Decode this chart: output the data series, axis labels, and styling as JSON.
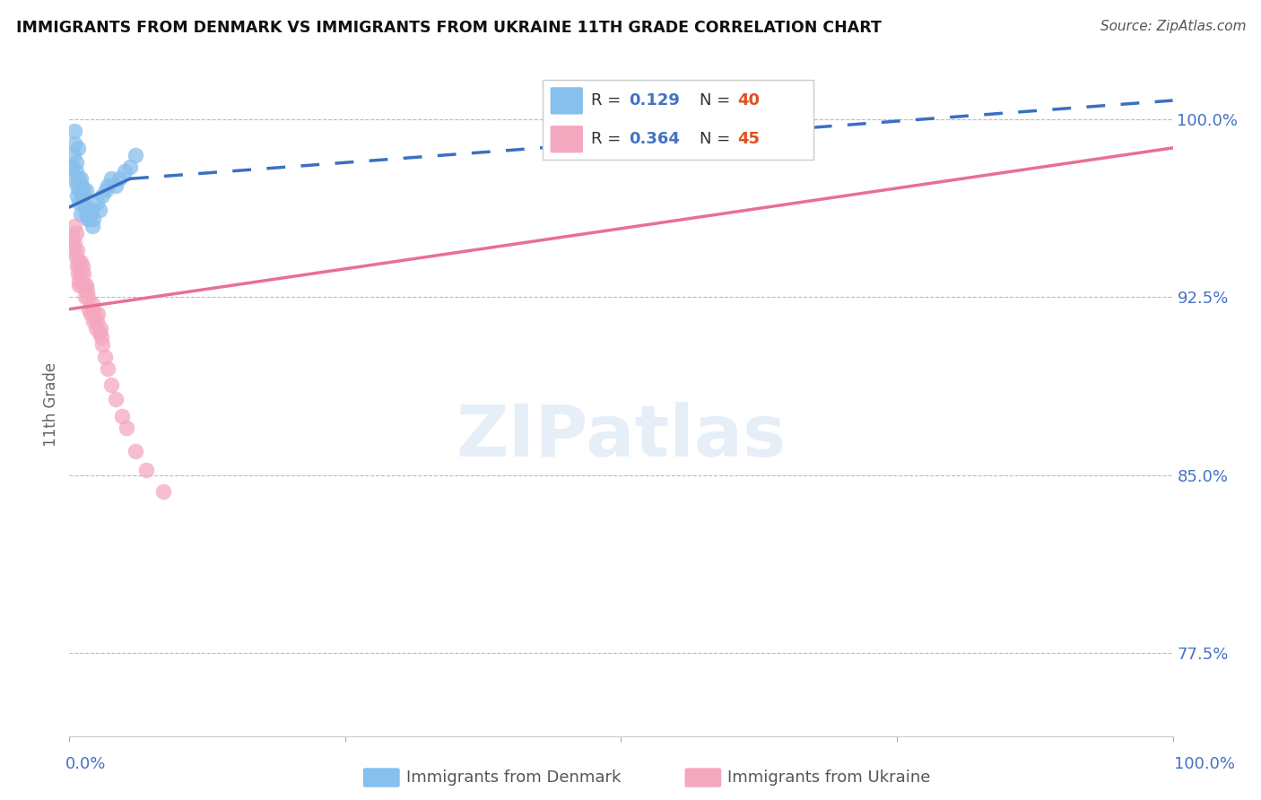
{
  "title": "IMMIGRANTS FROM DENMARK VS IMMIGRANTS FROM UKRAINE 11TH GRADE CORRELATION CHART",
  "source": "Source: ZipAtlas.com",
  "ylabel": "11th Grade",
  "x_range": [
    0.0,
    1.0
  ],
  "y_range": [
    0.74,
    1.02
  ],
  "y_ticks": [
    0.775,
    0.85,
    0.925,
    1.0
  ],
  "y_tick_labels": [
    "77.5%",
    "85.0%",
    "92.5%",
    "100.0%"
  ],
  "legend_r_denmark": "0.129",
  "legend_n_denmark": "40",
  "legend_r_ukraine": "0.364",
  "legend_n_ukraine": "45",
  "color_denmark": "#87BFED",
  "color_ukraine": "#F4A8BF",
  "color_denmark_line": "#3A70C0",
  "color_ukraine_line": "#E87090",
  "denmark_x": [
    0.003,
    0.003,
    0.004,
    0.005,
    0.005,
    0.006,
    0.006,
    0.007,
    0.007,
    0.008,
    0.008,
    0.009,
    0.009,
    0.01,
    0.01,
    0.011,
    0.012,
    0.013,
    0.013,
    0.014,
    0.015,
    0.015,
    0.016,
    0.017,
    0.018,
    0.019,
    0.02,
    0.021,
    0.022,
    0.025,
    0.027,
    0.03,
    0.033,
    0.035,
    0.038,
    0.042,
    0.045,
    0.05,
    0.055,
    0.06
  ],
  "denmark_y": [
    0.98,
    0.975,
    0.985,
    0.99,
    0.995,
    0.978,
    0.982,
    0.972,
    0.968,
    0.988,
    0.975,
    0.97,
    0.965,
    0.975,
    0.96,
    0.972,
    0.968,
    0.97,
    0.965,
    0.963,
    0.96,
    0.97,
    0.962,
    0.958,
    0.958,
    0.96,
    0.962,
    0.955,
    0.958,
    0.965,
    0.962,
    0.968,
    0.97,
    0.972,
    0.975,
    0.972,
    0.975,
    0.978,
    0.98,
    0.985
  ],
  "ukraine_x": [
    0.003,
    0.004,
    0.005,
    0.005,
    0.006,
    0.006,
    0.007,
    0.007,
    0.008,
    0.008,
    0.009,
    0.009,
    0.01,
    0.01,
    0.011,
    0.012,
    0.013,
    0.014,
    0.014,
    0.015,
    0.016,
    0.017,
    0.018,
    0.019,
    0.02,
    0.021,
    0.022,
    0.023,
    0.024,
    0.025,
    0.026,
    0.027,
    0.028,
    0.029,
    0.03,
    0.032,
    0.035,
    0.038,
    0.042,
    0.048,
    0.052,
    0.06,
    0.07,
    0.085,
    0.62
  ],
  "ukraine_y": [
    0.95,
    0.945,
    0.955,
    0.948,
    0.952,
    0.942,
    0.945,
    0.938,
    0.94,
    0.935,
    0.932,
    0.93,
    0.94,
    0.935,
    0.93,
    0.938,
    0.935,
    0.93,
    0.925,
    0.93,
    0.928,
    0.925,
    0.92,
    0.918,
    0.92,
    0.922,
    0.915,
    0.918,
    0.912,
    0.915,
    0.918,
    0.91,
    0.912,
    0.908,
    0.905,
    0.9,
    0.895,
    0.888,
    0.882,
    0.875,
    0.87,
    0.86,
    0.852,
    0.843,
    1.0
  ]
}
